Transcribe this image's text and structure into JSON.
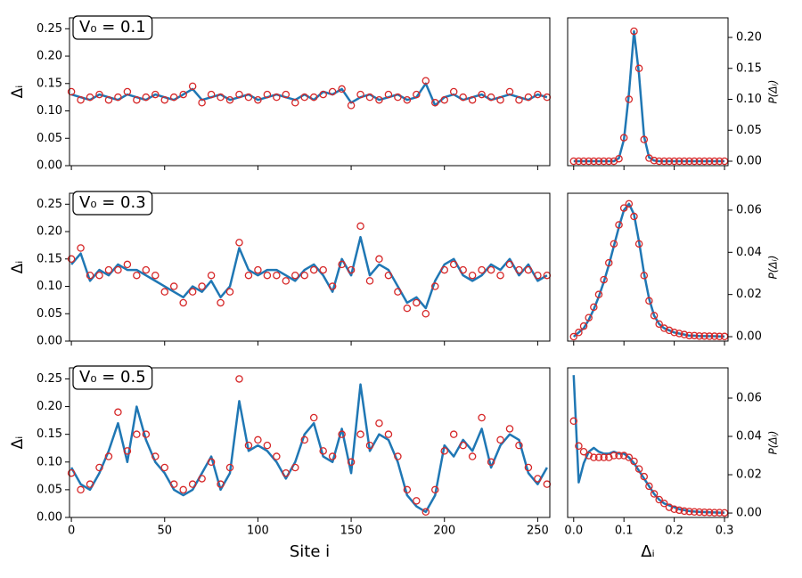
{
  "chart_data": [
    {
      "type": "line",
      "annotation": "V₀ = 0.1",
      "ylabel": "Δᵢ",
      "y_axis_side": "left",
      "show_xticklabels": false,
      "xlim": [
        -1,
        256.5
      ],
      "ylim": [
        0,
        0.27
      ],
      "xticks": [
        0,
        50,
        100,
        150,
        200,
        250
      ],
      "yticks": [
        {
          "value": 0,
          "label": "0.00"
        },
        {
          "value": 0.05,
          "label": "0.05"
        },
        {
          "value": 0.1,
          "label": "0.10"
        },
        {
          "value": 0.15,
          "label": "0.15"
        },
        {
          "value": 0.2,
          "label": "0.20"
        },
        {
          "value": 0.25,
          "label": "0.25"
        }
      ],
      "x": [
        0,
        5,
        10,
        15,
        20,
        25,
        30,
        35,
        40,
        45,
        50,
        55,
        60,
        65,
        70,
        75,
        80,
        85,
        90,
        95,
        100,
        105,
        110,
        115,
        120,
        125,
        130,
        135,
        140,
        145,
        150,
        155,
        160,
        165,
        170,
        175,
        180,
        185,
        190,
        195,
        200,
        205,
        210,
        215,
        220,
        225,
        230,
        235,
        240,
        245,
        250,
        255
      ],
      "series": [
        {
          "style": "line",
          "color": "#1f77b4",
          "values": [
            0.13,
            0.125,
            0.12,
            0.13,
            0.125,
            0.12,
            0.13,
            0.125,
            0.12,
            0.13,
            0.125,
            0.12,
            0.13,
            0.14,
            0.12,
            0.125,
            0.13,
            0.12,
            0.125,
            0.13,
            0.12,
            0.125,
            0.13,
            0.125,
            0.12,
            0.13,
            0.12,
            0.135,
            0.13,
            0.14,
            0.115,
            0.125,
            0.13,
            0.12,
            0.125,
            0.13,
            0.12,
            0.125,
            0.15,
            0.11,
            0.125,
            0.13,
            0.12,
            0.125,
            0.13,
            0.12,
            0.125,
            0.13,
            0.125,
            0.12,
            0.13,
            0.125
          ]
        },
        {
          "style": "markers",
          "color": "#d62728",
          "values": [
            0.135,
            0.12,
            0.125,
            0.13,
            0.12,
            0.125,
            0.135,
            0.12,
            0.125,
            0.13,
            0.12,
            0.125,
            0.13,
            0.145,
            0.115,
            0.13,
            0.125,
            0.12,
            0.13,
            0.125,
            0.12,
            0.13,
            0.125,
            0.13,
            0.115,
            0.125,
            0.125,
            0.13,
            0.135,
            0.14,
            0.11,
            0.13,
            0.125,
            0.12,
            0.13,
            0.125,
            0.12,
            0.13,
            0.155,
            0.115,
            0.12,
            0.135,
            0.125,
            0.12,
            0.13,
            0.125,
            0.12,
            0.135,
            0.12,
            0.125,
            0.13,
            0.125
          ]
        }
      ]
    },
    {
      "type": "line",
      "ylabel": "P(Δᵢ)",
      "y_axis_side": "right",
      "show_xticklabels": false,
      "xlim": [
        -0.012,
        0.307
      ],
      "ylim": [
        -0.0072,
        0.2317
      ],
      "xticks": [
        {
          "value": 0,
          "label": "0.0"
        },
        {
          "value": 0.1,
          "label": "0.1"
        },
        {
          "value": 0.2,
          "label": "0.2"
        },
        {
          "value": 0.3,
          "label": "0.3"
        }
      ],
      "yticks": [
        {
          "value": 0,
          "label": "0.00"
        },
        {
          "value": 0.05,
          "label": "0.05"
        },
        {
          "value": 0.1,
          "label": "0.10"
        },
        {
          "value": 0.15,
          "label": "0.15"
        },
        {
          "value": 0.2,
          "label": "0.20"
        }
      ],
      "x": [
        0,
        0.01,
        0.02,
        0.03,
        0.04,
        0.05,
        0.06,
        0.07,
        0.08,
        0.09,
        0.1,
        0.11,
        0.12,
        0.13,
        0.14,
        0.15,
        0.16,
        0.17,
        0.18,
        0.19,
        0.2,
        0.21,
        0.22,
        0.23,
        0.24,
        0.25,
        0.26,
        0.27,
        0.28,
        0.29,
        0.3
      ],
      "series": [
        {
          "style": "line",
          "color": "#1f77b4",
          "values": [
            0,
            0,
            0,
            0,
            0,
            0,
            0,
            0,
            0,
            0.005,
            0.035,
            0.11,
            0.21,
            0.14,
            0.04,
            0.006,
            0.001,
            0,
            0,
            0,
            0,
            0,
            0,
            0,
            0,
            0,
            0,
            0,
            0,
            0,
            0
          ]
        },
        {
          "style": "markers",
          "color": "#d62728",
          "values": [
            0,
            0,
            0,
            0,
            0,
            0,
            0,
            0,
            0,
            0.004,
            0.038,
            0.1,
            0.21,
            0.15,
            0.035,
            0.005,
            0.001,
            0,
            0,
            0,
            0,
            0,
            0,
            0,
            0,
            0,
            0,
            0,
            0,
            0,
            0
          ]
        }
      ]
    },
    {
      "type": "line",
      "annotation": "V₀ = 0.3",
      "ylabel": "Δᵢ",
      "y_axis_side": "left",
      "show_xticklabels": false,
      "xlim": [
        -1,
        256.5
      ],
      "ylim": [
        0,
        0.27
      ],
      "xticks": [
        0,
        50,
        100,
        150,
        200,
        250
      ],
      "yticks": [
        {
          "value": 0,
          "label": "0.00"
        },
        {
          "value": 0.05,
          "label": "0.05"
        },
        {
          "value": 0.1,
          "label": "0.10"
        },
        {
          "value": 0.15,
          "label": "0.15"
        },
        {
          "value": 0.2,
          "label": "0.20"
        },
        {
          "value": 0.25,
          "label": "0.25"
        }
      ],
      "x": [
        0,
        5,
        10,
        15,
        20,
        25,
        30,
        35,
        40,
        45,
        50,
        55,
        60,
        65,
        70,
        75,
        80,
        85,
        90,
        95,
        100,
        105,
        110,
        115,
        120,
        125,
        130,
        135,
        140,
        145,
        150,
        155,
        160,
        165,
        170,
        175,
        180,
        185,
        190,
        195,
        200,
        205,
        210,
        215,
        220,
        225,
        230,
        235,
        240,
        245,
        250,
        255
      ],
      "series": [
        {
          "style": "line",
          "color": "#1f77b4",
          "values": [
            0.14,
            0.16,
            0.11,
            0.13,
            0.12,
            0.14,
            0.13,
            0.13,
            0.12,
            0.11,
            0.1,
            0.09,
            0.08,
            0.1,
            0.09,
            0.11,
            0.08,
            0.1,
            0.17,
            0.13,
            0.12,
            0.13,
            0.13,
            0.12,
            0.11,
            0.13,
            0.14,
            0.12,
            0.09,
            0.15,
            0.12,
            0.19,
            0.12,
            0.14,
            0.13,
            0.1,
            0.07,
            0.08,
            0.06,
            0.11,
            0.14,
            0.15,
            0.12,
            0.11,
            0.12,
            0.14,
            0.13,
            0.15,
            0.12,
            0.14,
            0.11,
            0.12
          ]
        },
        {
          "style": "markers",
          "color": "#d62728",
          "values": [
            0.15,
            0.17,
            0.12,
            0.12,
            0.13,
            0.13,
            0.14,
            0.12,
            0.13,
            0.12,
            0.09,
            0.1,
            0.07,
            0.09,
            0.1,
            0.12,
            0.07,
            0.09,
            0.18,
            0.12,
            0.13,
            0.12,
            0.12,
            0.11,
            0.12,
            0.12,
            0.13,
            0.13,
            0.1,
            0.14,
            0.13,
            0.21,
            0.11,
            0.15,
            0.12,
            0.09,
            0.06,
            0.07,
            0.05,
            0.1,
            0.13,
            0.14,
            0.13,
            0.12,
            0.13,
            0.13,
            0.12,
            0.14,
            0.13,
            0.13,
            0.12,
            0.12
          ]
        }
      ]
    },
    {
      "type": "line",
      "ylabel": "P(Δᵢ)",
      "y_axis_side": "right",
      "show_xticklabels": false,
      "xlim": [
        -0.012,
        0.307
      ],
      "ylim": [
        -0.0021,
        0.068
      ],
      "xticks": [
        {
          "value": 0,
          "label": "0.0"
        },
        {
          "value": 0.1,
          "label": "0.1"
        },
        {
          "value": 0.2,
          "label": "0.2"
        },
        {
          "value": 0.3,
          "label": "0.3"
        }
      ],
      "yticks": [
        {
          "value": 0,
          "label": "0.00"
        },
        {
          "value": 0.02,
          "label": "0.02"
        },
        {
          "value": 0.04,
          "label": "0.04"
        },
        {
          "value": 0.06,
          "label": "0.06"
        }
      ],
      "x": [
        0,
        0.01,
        0.02,
        0.03,
        0.04,
        0.05,
        0.06,
        0.07,
        0.08,
        0.09,
        0.1,
        0.11,
        0.12,
        0.13,
        0.14,
        0.15,
        0.16,
        0.17,
        0.18,
        0.19,
        0.2,
        0.21,
        0.22,
        0.23,
        0.24,
        0.25,
        0.26,
        0.27,
        0.28,
        0.29,
        0.3
      ],
      "series": [
        {
          "style": "line",
          "color": "#1f77b4",
          "values": [
            0,
            0.002,
            0.004,
            0.008,
            0.013,
            0.019,
            0.026,
            0.034,
            0.043,
            0.052,
            0.06,
            0.063,
            0.058,
            0.045,
            0.03,
            0.018,
            0.01,
            0.006,
            0.004,
            0.003,
            0.002,
            0.0015,
            0.001,
            0.0005,
            0.0005,
            0.0003,
            0.0003,
            0.0002,
            0.0002,
            0.0001,
            0.0001
          ]
        },
        {
          "style": "markers",
          "color": "#d62728",
          "values": [
            0,
            0.002,
            0.005,
            0.009,
            0.014,
            0.02,
            0.027,
            0.035,
            0.044,
            0.053,
            0.061,
            0.063,
            0.057,
            0.044,
            0.029,
            0.017,
            0.01,
            0.006,
            0.004,
            0.003,
            0.002,
            0.0015,
            0.001,
            0.0005,
            0.0005,
            0.0003,
            0.0003,
            0.0002,
            0.0002,
            0.0001,
            0.0001
          ]
        }
      ]
    },
    {
      "type": "line",
      "annotation": "V₀ = 0.5",
      "ylabel": "Δᵢ",
      "xlabel": "Site i",
      "y_axis_side": "left",
      "show_xticklabels": true,
      "xlim": [
        -1,
        256.5
      ],
      "ylim": [
        0,
        0.27
      ],
      "xticks": [
        0,
        50,
        100,
        150,
        200,
        250
      ],
      "yticks": [
        {
          "value": 0,
          "label": "0.00"
        },
        {
          "value": 0.05,
          "label": "0.05"
        },
        {
          "value": 0.1,
          "label": "0.10"
        },
        {
          "value": 0.15,
          "label": "0.15"
        },
        {
          "value": 0.2,
          "label": "0.20"
        },
        {
          "value": 0.25,
          "label": "0.25"
        }
      ],
      "x": [
        0,
        5,
        10,
        15,
        20,
        25,
        30,
        35,
        40,
        45,
        50,
        55,
        60,
        65,
        70,
        75,
        80,
        85,
        90,
        95,
        100,
        105,
        110,
        115,
        120,
        125,
        130,
        135,
        140,
        145,
        150,
        155,
        160,
        165,
        170,
        175,
        180,
        185,
        190,
        195,
        200,
        205,
        210,
        215,
        220,
        225,
        230,
        235,
        240,
        245,
        250,
        255
      ],
      "series": [
        {
          "style": "line",
          "color": "#1f77b4",
          "values": [
            0.09,
            0.06,
            0.05,
            0.08,
            0.12,
            0.17,
            0.1,
            0.2,
            0.14,
            0.1,
            0.08,
            0.05,
            0.04,
            0.05,
            0.08,
            0.11,
            0.05,
            0.08,
            0.21,
            0.12,
            0.13,
            0.12,
            0.1,
            0.07,
            0.1,
            0.15,
            0.17,
            0.11,
            0.1,
            0.16,
            0.08,
            0.24,
            0.12,
            0.15,
            0.14,
            0.1,
            0.04,
            0.02,
            0.01,
            0.04,
            0.13,
            0.11,
            0.14,
            0.12,
            0.16,
            0.09,
            0.13,
            0.15,
            0.14,
            0.08,
            0.06,
            0.09
          ]
        },
        {
          "style": "markers",
          "color": "#d62728",
          "values": [
            0.08,
            0.05,
            0.06,
            0.09,
            0.11,
            0.19,
            0.12,
            0.15,
            0.15,
            0.11,
            0.09,
            0.06,
            0.05,
            0.06,
            0.07,
            0.1,
            0.06,
            0.09,
            0.25,
            0.13,
            0.14,
            0.13,
            0.11,
            0.08,
            0.09,
            0.14,
            0.18,
            0.12,
            0.11,
            0.15,
            0.1,
            0.15,
            0.13,
            0.17,
            0.15,
            0.11,
            0.05,
            0.03,
            0.01,
            0.05,
            0.12,
            0.15,
            0.13,
            0.11,
            0.18,
            0.1,
            0.14,
            0.16,
            0.13,
            0.09,
            0.07,
            0.06
          ]
        }
      ]
    },
    {
      "type": "line",
      "ylabel": "P(Δᵢ)",
      "xlabel": "Δᵢ",
      "y_axis_side": "right",
      "show_xticklabels": true,
      "xlim": [
        -0.012,
        0.307
      ],
      "ylim": [
        -0.0023,
        0.0758
      ],
      "xticks": [
        {
          "value": 0,
          "label": "0.0"
        },
        {
          "value": 0.1,
          "label": "0.1"
        },
        {
          "value": 0.2,
          "label": "0.2"
        },
        {
          "value": 0.3,
          "label": "0.3"
        }
      ],
      "yticks": [
        {
          "value": 0,
          "label": "0.00"
        },
        {
          "value": 0.02,
          "label": "0.02"
        },
        {
          "value": 0.04,
          "label": "0.04"
        },
        {
          "value": 0.06,
          "label": "0.06"
        }
      ],
      "x": [
        0,
        0.01,
        0.02,
        0.03,
        0.04,
        0.05,
        0.06,
        0.07,
        0.08,
        0.09,
        0.1,
        0.11,
        0.12,
        0.13,
        0.14,
        0.15,
        0.16,
        0.17,
        0.18,
        0.19,
        0.2,
        0.21,
        0.22,
        0.23,
        0.24,
        0.25,
        0.26,
        0.27,
        0.28,
        0.29,
        0.3
      ],
      "series": [
        {
          "style": "line",
          "color": "#1f77b4",
          "values": [
            0.072,
            0.016,
            0.026,
            0.032,
            0.034,
            0.032,
            0.031,
            0.031,
            0.032,
            0.031,
            0.031,
            0.029,
            0.026,
            0.022,
            0.018,
            0.014,
            0.01,
            0.007,
            0.005,
            0.004,
            0.003,
            0.002,
            0.0015,
            0.001,
            0.0008,
            0.0006,
            0.0005,
            0.0004,
            0.0003,
            0.0002,
            0.0002
          ]
        },
        {
          "style": "markers",
          "color": "#d62728",
          "values": [
            0.048,
            0.035,
            0.032,
            0.03,
            0.029,
            0.029,
            0.029,
            0.029,
            0.03,
            0.03,
            0.03,
            0.029,
            0.027,
            0.023,
            0.019,
            0.014,
            0.01,
            0.007,
            0.005,
            0.003,
            0.002,
            0.0015,
            0.001,
            0.0008,
            0.0006,
            0.0005,
            0.0004,
            0.0003,
            0.0002,
            0.0002,
            0.0001
          ]
        }
      ]
    }
  ]
}
